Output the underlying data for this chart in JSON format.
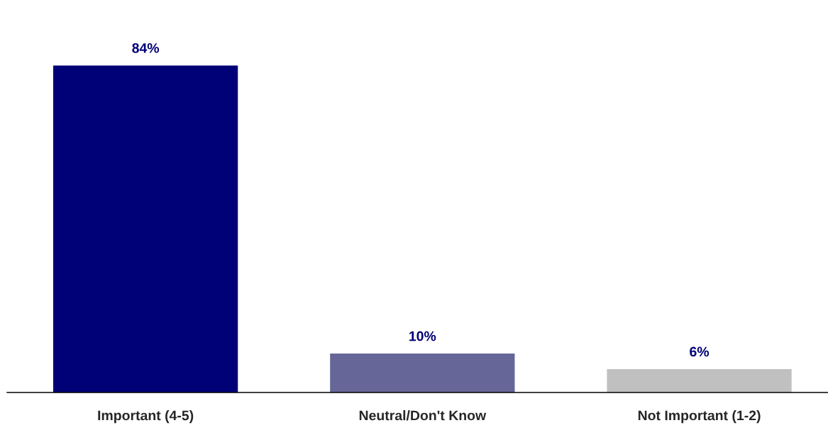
{
  "chart_data": {
    "type": "bar",
    "categories": [
      "Important (4-5)",
      "Neutral/Don't Know",
      "Not Important (1-2)"
    ],
    "values": [
      84,
      10,
      6
    ],
    "colors": [
      "#000077",
      "#666699",
      "#c0c0c0"
    ],
    "value_labels": [
      "84%",
      "10%",
      "6%"
    ],
    "grid": false,
    "legend": false
  }
}
